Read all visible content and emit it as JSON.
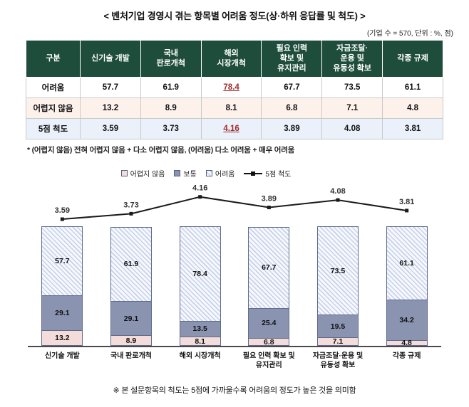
{
  "title": "< 벤처기업 경영시 겪는 항목별 어려움 정도(상·하위 응답률 및 척도) >",
  "unit_note": "(기업 수 = 570, 단위 : %, 점)",
  "table": {
    "header": [
      "구분",
      "신기술 개발",
      "국내\n판로개척",
      "해외\n시장개척",
      "필요 인력\n확보 및\n유지관리",
      "자금조달·\n운용 및\n유동성 확보",
      "각종 규제"
    ],
    "rows": [
      {
        "label": "어려움",
        "values": [
          "57.7",
          "61.9",
          "78.4",
          "67.7",
          "73.5",
          "61.1"
        ]
      },
      {
        "label": "어렵지 않음",
        "values": [
          "13.2",
          "8.9",
          "8.1",
          "6.8",
          "7.1",
          "4.8"
        ]
      },
      {
        "label": "5점 척도",
        "values": [
          "3.59",
          "3.73",
          "4.16",
          "3.89",
          "4.08",
          "3.81"
        ]
      }
    ]
  },
  "footnote": "* (어렵지 않음) 전혀 어렵지 않음 + 다소 어렵지 않음, (어려움) 다소 어려움 + 매우 어려움",
  "legend": [
    "어렵지 않음",
    "보통",
    "어려움",
    "5점 척도"
  ],
  "chart_data": {
    "type": "bar",
    "subtype": "stacked-percent-with-line",
    "categories": [
      "신기술 개발",
      "국내 판로개척",
      "해외 시장개척",
      "필요 인력 확보 및\n유지관리",
      "자금조달·운용 및\n유동성 확보",
      "각종 규제"
    ],
    "series": [
      {
        "name": "어렵지 않음",
        "key": "not-difficult",
        "values": [
          13.2,
          8.9,
          8.1,
          6.8,
          7.1,
          4.8
        ],
        "color": "#f3dcda"
      },
      {
        "name": "보통",
        "key": "normal",
        "values": [
          29.1,
          29.1,
          13.5,
          25.4,
          19.5,
          34.2
        ],
        "color": "#8a94b0"
      },
      {
        "name": "어려움",
        "key": "difficult",
        "values": [
          57.7,
          61.9,
          78.4,
          67.7,
          73.5,
          61.1
        ],
        "color": "hatch"
      }
    ],
    "line": {
      "name": "5점 척도",
      "values": [
        3.59,
        3.73,
        4.16,
        3.89,
        4.08,
        3.81
      ],
      "range": [
        3.5,
        4.2
      ],
      "color": "#1a1a1a"
    },
    "ylim": [
      0,
      100
    ],
    "legend_position": "top"
  },
  "bottom_note": "※ 본 설문항목의 척도는 5점에 가까울수록 어려움의 정도가 높은 것을 의미함",
  "colors": {
    "table_header_bg": "#1e4d3c",
    "row_not_difficult_bg": "#fdf1ec",
    "row_scale_bg": "#eaf1fb",
    "highlight_value": "#9e2b2b"
  }
}
